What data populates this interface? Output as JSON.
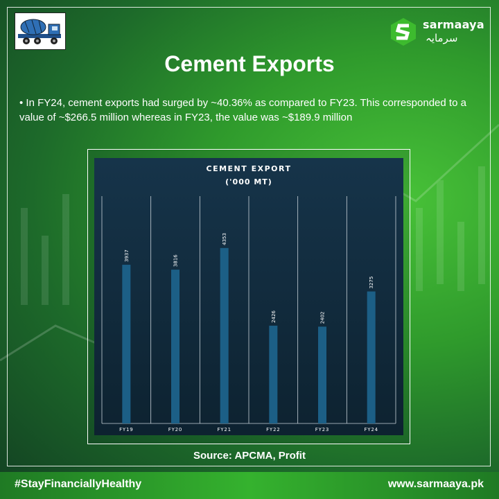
{
  "title": "Cement Exports",
  "intro": "• In FY24, cement exports had surged by ~40.36% as compared to FY23. This corresponded to a value of ~$266.5 million whereas in FY23, the value was ~$189.9 million",
  "source": "Source: APCMA, Profit",
  "brand": {
    "name": "sarmaaya",
    "urdu": "سرمایہ"
  },
  "footer": {
    "hashtag": "#StayFinanciallyHealthy",
    "website": "www.sarmaaya.pk"
  },
  "colors": {
    "bar": "#1c5f86",
    "chart_bg_top": "#16344a",
    "chart_bg_bottom": "#0d2230",
    "brand_green": "#3dbb2e"
  },
  "chart_data": {
    "type": "bar",
    "title": "CEMENT EXPORT",
    "subtitle": "('000 MT)",
    "categories": [
      "FY19",
      "FY20",
      "FY21",
      "FY22",
      "FY23",
      "FY24"
    ],
    "values": [
      3937,
      3816,
      4353,
      2426,
      2402,
      3275
    ],
    "ylim": [
      0,
      5640
    ],
    "grid": "vertical"
  }
}
